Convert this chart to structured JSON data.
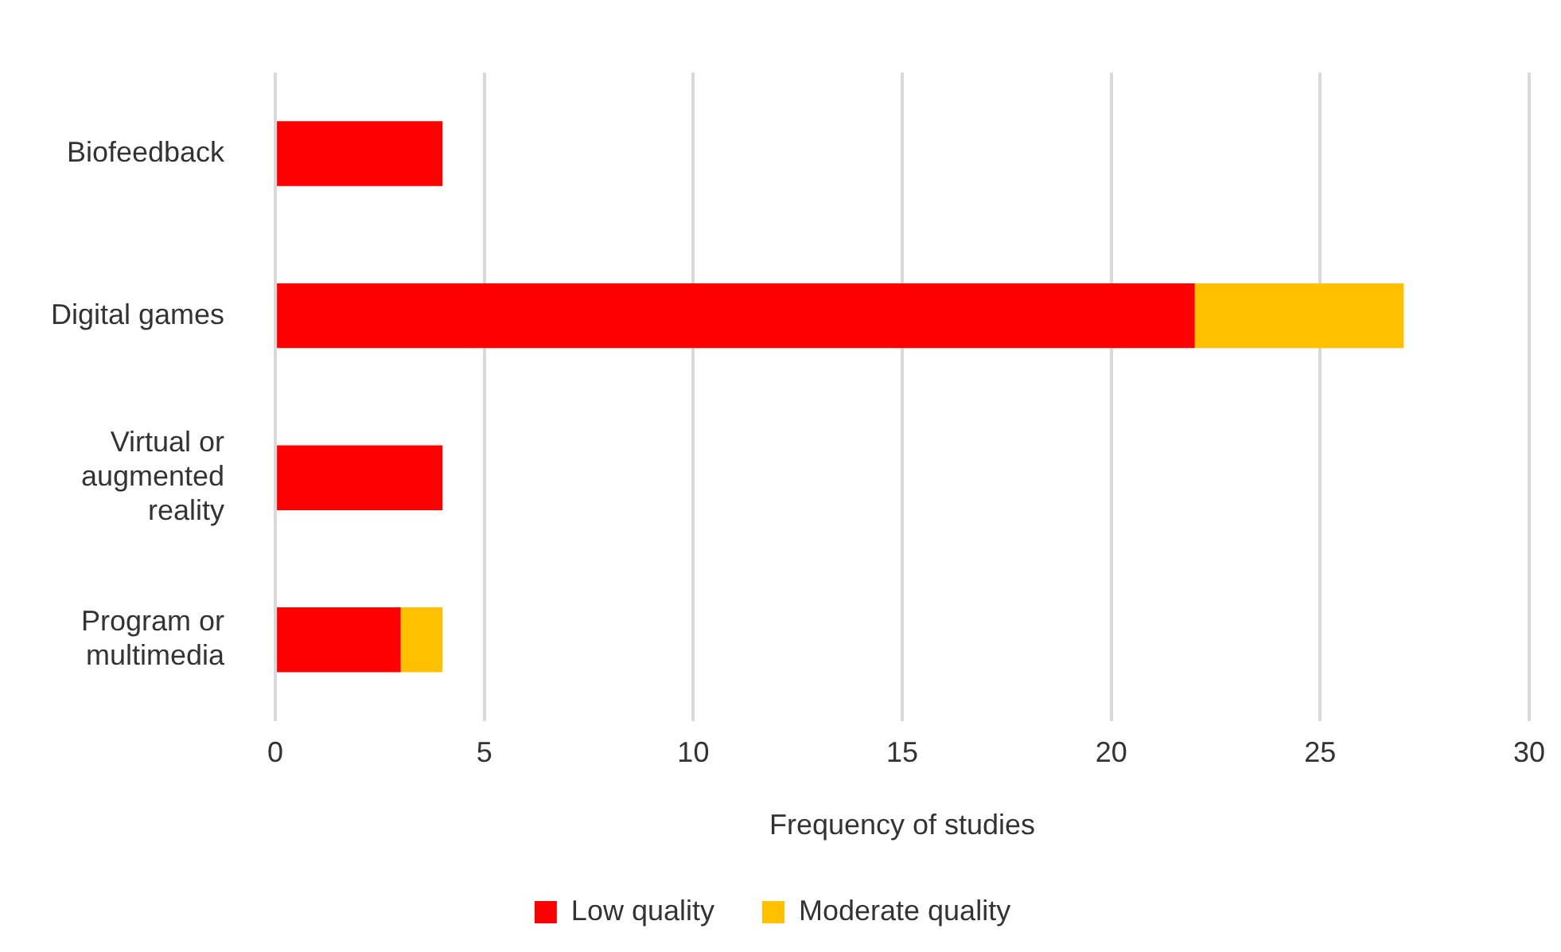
{
  "chart_data": {
    "type": "bar",
    "orientation": "horizontal",
    "stacked": true,
    "categories": [
      "Biofeedback",
      "Digital games",
      "Virtual or augmented reality",
      "Program or multimedia"
    ],
    "series": [
      {
        "name": "Low quality",
        "color": "#ff0000",
        "values": [
          4,
          22,
          4,
          3
        ]
      },
      {
        "name": "Moderate quality",
        "color": "#ffc000",
        "values": [
          0,
          5,
          0,
          1
        ]
      }
    ],
    "xlabel": "Frequency of studies",
    "xlim": [
      0,
      30
    ],
    "xticks": [
      0,
      5,
      10,
      15,
      20,
      25,
      30
    ],
    "grid": "x",
    "legend": "bottom"
  }
}
